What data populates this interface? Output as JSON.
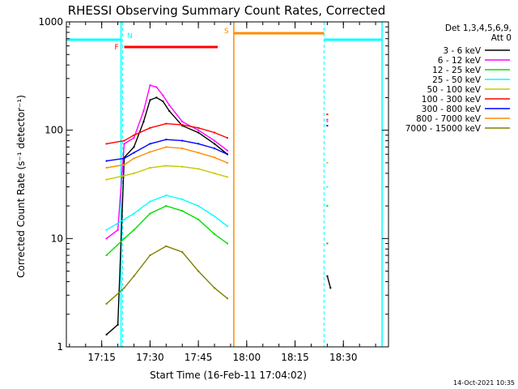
{
  "chart_data": {
    "type": "line",
    "title": "RHESSI Observing Summary Count Rates, Corrected",
    "xlabel": "Start Time (16-Feb-11 17:04:02)",
    "ylabel": "Corrected Count Rate (s⁻¹ detector⁻¹)",
    "ylim": [
      1,
      1000
    ],
    "yscale": "log",
    "y_ticks": [
      "1",
      "10",
      "100",
      "1000"
    ],
    "x_ticks": [
      "17:15",
      "17:30",
      "17:45",
      "18:00",
      "18:15",
      "18:30"
    ],
    "legend_title": [
      "Det 1,3,4,5,6,9,",
      "Att 0"
    ],
    "legend_placement": "right",
    "footer_timestamp": "14-Oct-2021 10:35",
    "state_labels": {
      "night": "N",
      "flare": "F",
      "saa": "S"
    },
    "series": [
      {
        "name": "3 - 6 keV",
        "color": "#000000",
        "values": [
          {
            "t": "17:16:30",
            "y": 1.3
          },
          {
            "t": "17:20",
            "y": 1.6
          },
          {
            "t": "17:22",
            "y": 56
          },
          {
            "t": "17:25",
            "y": 70
          },
          {
            "t": "17:28",
            "y": 120
          },
          {
            "t": "17:30",
            "y": 190
          },
          {
            "t": "17:32",
            "y": 200
          },
          {
            "t": "17:34",
            "y": 185
          },
          {
            "t": "17:36",
            "y": 150
          },
          {
            "t": "17:40",
            "y": 110
          },
          {
            "t": "17:45",
            "y": 95
          },
          {
            "t": "17:50",
            "y": 75
          },
          {
            "t": "17:54",
            "y": 60
          },
          {
            "t": "18:25",
            "y": 4.5
          },
          {
            "t": "18:26",
            "y": 3.5
          }
        ]
      },
      {
        "name": "6 - 12 keV",
        "color": "#ff00ff",
        "values": [
          {
            "t": "17:16:30",
            "y": 10
          },
          {
            "t": "17:20",
            "y": 12
          },
          {
            "t": "17:22",
            "y": 75
          },
          {
            "t": "17:25",
            "y": 85
          },
          {
            "t": "17:28",
            "y": 150
          },
          {
            "t": "17:30",
            "y": 260
          },
          {
            "t": "17:32",
            "y": 250
          },
          {
            "t": "17:34",
            "y": 210
          },
          {
            "t": "17:36",
            "y": 170
          },
          {
            "t": "17:40",
            "y": 120
          },
          {
            "t": "17:45",
            "y": 100
          },
          {
            "t": "17:50",
            "y": 80
          },
          {
            "t": "17:54",
            "y": 65
          },
          {
            "t": "18:25",
            "y": 125
          }
        ]
      },
      {
        "name": "12 - 25 keV",
        "color": "#00e000",
        "values": [
          {
            "t": "17:16:30",
            "y": 7
          },
          {
            "t": "17:22",
            "y": 10
          },
          {
            "t": "17:25",
            "y": 12
          },
          {
            "t": "17:30",
            "y": 17
          },
          {
            "t": "17:35",
            "y": 20
          },
          {
            "t": "17:40",
            "y": 18
          },
          {
            "t": "17:45",
            "y": 15
          },
          {
            "t": "17:50",
            "y": 11
          },
          {
            "t": "17:54",
            "y": 9
          },
          {
            "t": "18:25",
            "y": 20
          }
        ]
      },
      {
        "name": "25 - 50 keV",
        "color": "#00ffff",
        "values": [
          {
            "t": "17:16:30",
            "y": 12
          },
          {
            "t": "17:22",
            "y": 15
          },
          {
            "t": "17:25",
            "y": 17
          },
          {
            "t": "17:30",
            "y": 22
          },
          {
            "t": "17:35",
            "y": 25
          },
          {
            "t": "17:40",
            "y": 23
          },
          {
            "t": "17:45",
            "y": 20
          },
          {
            "t": "17:50",
            "y": 16
          },
          {
            "t": "17:54",
            "y": 13
          },
          {
            "t": "18:25",
            "y": 30
          }
        ]
      },
      {
        "name": "50 - 100 keV",
        "color": "#c8c800",
        "values": [
          {
            "t": "17:16:30",
            "y": 35
          },
          {
            "t": "17:22",
            "y": 38
          },
          {
            "t": "17:25",
            "y": 40
          },
          {
            "t": "17:30",
            "y": 45
          },
          {
            "t": "17:35",
            "y": 47
          },
          {
            "t": "17:40",
            "y": 46
          },
          {
            "t": "17:45",
            "y": 44
          },
          {
            "t": "17:50",
            "y": 40
          },
          {
            "t": "17:54",
            "y": 37
          },
          {
            "t": "18:25",
            "y": 50
          }
        ]
      },
      {
        "name": "100 - 300 keV",
        "color": "#ff0000",
        "values": [
          {
            "t": "17:16:30",
            "y": 75
          },
          {
            "t": "17:22",
            "y": 80
          },
          {
            "t": "17:25",
            "y": 90
          },
          {
            "t": "17:30",
            "y": 105
          },
          {
            "t": "17:35",
            "y": 115
          },
          {
            "t": "17:40",
            "y": 112
          },
          {
            "t": "17:45",
            "y": 105
          },
          {
            "t": "17:50",
            "y": 95
          },
          {
            "t": "17:54",
            "y": 85
          },
          {
            "t": "18:25",
            "y": 140
          }
        ]
      },
      {
        "name": "300 - 800 keV",
        "color": "#0000ff",
        "values": [
          {
            "t": "17:16:30",
            "y": 52
          },
          {
            "t": "17:22",
            "y": 55
          },
          {
            "t": "17:25",
            "y": 62
          },
          {
            "t": "17:30",
            "y": 75
          },
          {
            "t": "17:35",
            "y": 82
          },
          {
            "t": "17:40",
            "y": 80
          },
          {
            "t": "17:45",
            "y": 75
          },
          {
            "t": "17:50",
            "y": 68
          },
          {
            "t": "17:54",
            "y": 60
          },
          {
            "t": "18:25",
            "y": 110
          }
        ]
      },
      {
        "name": "800 - 7000 keV",
        "color": "#ff8c00",
        "values": [
          {
            "t": "17:16:30",
            "y": 45
          },
          {
            "t": "17:22",
            "y": 48
          },
          {
            "t": "17:25",
            "y": 55
          },
          {
            "t": "17:30",
            "y": 63
          },
          {
            "t": "17:35",
            "y": 70
          },
          {
            "t": "17:40",
            "y": 68
          },
          {
            "t": "17:45",
            "y": 62
          },
          {
            "t": "17:50",
            "y": 56
          },
          {
            "t": "17:54",
            "y": 50
          },
          {
            "t": "18:25",
            "y": 120
          }
        ]
      },
      {
        "name": "7000 - 15000 keV",
        "color": "#808000",
        "values": [
          {
            "t": "17:16:30",
            "y": 2.5
          },
          {
            "t": "17:22",
            "y": 3.5
          },
          {
            "t": "17:25",
            "y": 4.5
          },
          {
            "t": "17:30",
            "y": 7
          },
          {
            "t": "17:35",
            "y": 8.5
          },
          {
            "t": "17:40",
            "y": 7.5
          },
          {
            "t": "17:45",
            "y": 5
          },
          {
            "t": "17:50",
            "y": 3.5
          },
          {
            "t": "17:54",
            "y": 2.8
          },
          {
            "t": "18:25",
            "y": 9
          }
        ]
      }
    ],
    "flags": {
      "night": [
        {
          "start": "17:04:02",
          "end": "17:21",
          "color": "#00ffff"
        },
        {
          "start": "18:24",
          "end": "18:42",
          "color": "#00ffff"
        }
      ],
      "flare": [
        {
          "start": "17:22",
          "end": "17:51",
          "color": "#ff0000"
        }
      ],
      "saa": [
        {
          "start": "17:56",
          "end": "18:24",
          "color": "#ff8c00"
        }
      ],
      "markers": [
        {
          "t": "17:21:30",
          "color": "#00ffff"
        },
        {
          "t": "17:56",
          "color": "#ff8c00"
        },
        {
          "t": "18:24",
          "color": "#00ffff"
        },
        {
          "t": "18:42",
          "color": "#00ffff"
        }
      ]
    },
    "x_range": [
      "17:04:02",
      "18:44"
    ]
  }
}
